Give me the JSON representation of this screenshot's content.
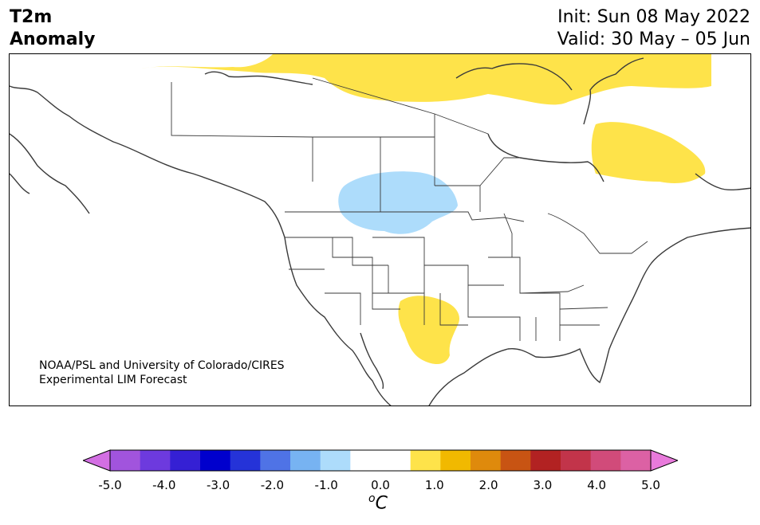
{
  "header": {
    "title_line1": "T2m",
    "title_line2": "Anomaly",
    "init": "Init: Sun 08 May 2022",
    "valid": "Valid: 30 May – 05 Jun"
  },
  "credit": {
    "line1": "NOAA/PSL and University of Colorado/CIRES",
    "line2": "Experimental LIM Forecast"
  },
  "colorbar": {
    "ticks": [
      "-5.0",
      "-4.0",
      "-3.0",
      "-2.0",
      "-1.0",
      "0.0",
      "1.0",
      "2.0",
      "3.0",
      "4.0",
      "5.0"
    ],
    "unit_base": "C",
    "unit_sup": "o",
    "colors": [
      "#d36fe3",
      "#a154dd",
      "#6d3ade",
      "#3520d4",
      "#0000cd",
      "#2533d8",
      "#4f73e6",
      "#77b3f2",
      "#addcfb",
      "#ffffff",
      "#ffffff",
      "#fee34a",
      "#f1b900",
      "#df8a0c",
      "#c85413",
      "#b22222",
      "#c2344a",
      "#d14b7a",
      "#dc61a4",
      "#e87adb"
    ]
  },
  "anomaly_regions": [
    {
      "label": "northern Canada",
      "category": "+0.5 to +1.0",
      "color": "#fee34a"
    },
    {
      "label": "Quebec / Labrador",
      "category": "+0.5 to +1.0",
      "color": "#fee34a"
    },
    {
      "label": "southern Prairies / northern Plains",
      "category": "-1.0 to -0.5",
      "color": "#addcfb"
    },
    {
      "label": "southern Rockies / Texas",
      "category": "+0.5 to +1.0",
      "color": "#fee34a"
    }
  ]
}
